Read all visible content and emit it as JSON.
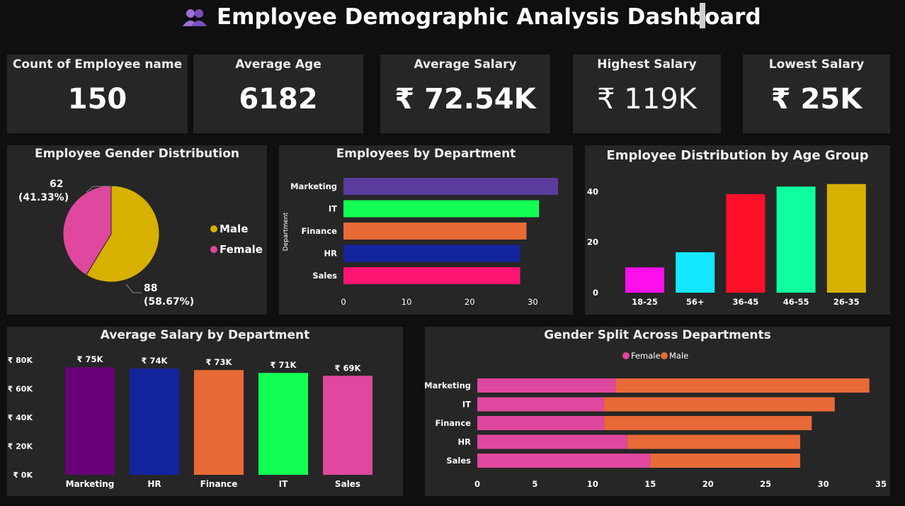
{
  "header": {
    "title": "Employee Demographic Analysis Dashboard"
  },
  "kpis": [
    {
      "label": "Count of Employee name",
      "value": "150"
    },
    {
      "label": "Average Age",
      "value": "6182"
    },
    {
      "label": "Average Salary",
      "value": "₹ 72.54K"
    },
    {
      "label": "Highest Salary",
      "value": "₹ 119K"
    },
    {
      "label": "Lowest Salary",
      "value": "₹ 25K"
    }
  ],
  "colors": {
    "background": "#0f0f0f",
    "card": "#262626",
    "male": "#d8b000",
    "female": "#e0479e"
  },
  "chart_data": [
    {
      "id": "gender",
      "type": "pie",
      "title": "Employee Gender Distribution",
      "slices": [
        {
          "label": "Male",
          "value": 88,
          "display": "88",
          "pct": "(58.67%)",
          "color": "#d8b000"
        },
        {
          "label": "Female",
          "value": 62,
          "display": "62",
          "pct": "(41.33%)",
          "color": "#e0479e"
        }
      ],
      "legend_placement": "right"
    },
    {
      "id": "dept",
      "type": "bar",
      "orientation": "horizontal",
      "title": "Employees by Department",
      "ylabel": "Department",
      "categories": [
        "Marketing",
        "IT",
        "Finance",
        "HR",
        "Sales"
      ],
      "values": [
        34,
        31,
        29,
        28,
        28
      ],
      "colors": [
        "#5b3b9c",
        "#12ff53",
        "#e86a36",
        "#13239e",
        "#ff1472"
      ],
      "xticks": [
        "0",
        "10",
        "20",
        "30"
      ],
      "xlim": [
        0,
        34
      ]
    },
    {
      "id": "age",
      "type": "bar",
      "title": "Employee Distribution by Age Group",
      "categories": [
        "18-25",
        "56+",
        "36-45",
        "46-55",
        "26-35"
      ],
      "values": [
        10,
        16,
        39,
        42,
        43
      ],
      "colors": [
        "#ff10ec",
        "#13e8ff",
        "#ff1028",
        "#10ff9e",
        "#d8b000"
      ],
      "yticks": [
        "0",
        "20",
        "40"
      ],
      "ylim": [
        0,
        46
      ]
    },
    {
      "id": "salary",
      "type": "bar",
      "title": "Average Salary by Department",
      "categories": [
        "Marketing",
        "HR",
        "Finance",
        "IT",
        "Sales"
      ],
      "values": [
        75,
        74,
        73,
        71,
        69
      ],
      "data_labels": [
        "₹ 75K",
        "₹ 74K",
        "₹ 73K",
        "₹ 71K",
        "₹ 69K"
      ],
      "colors": [
        "#6a0078",
        "#13239e",
        "#e86a36",
        "#12ff53",
        "#e0479e"
      ],
      "yticks": [
        "₹ 0K",
        "₹ 20K",
        "₹ 40K",
        "₹ 60K",
        "₹ 80K"
      ],
      "ylim": [
        0,
        80
      ]
    },
    {
      "id": "split",
      "type": "bar",
      "orientation": "horizontal",
      "stacked": true,
      "title": "Gender Split Across Departments",
      "categories": [
        "Marketing",
        "IT",
        "Finance",
        "HR",
        "Sales"
      ],
      "series": [
        {
          "name": "Female",
          "values": [
            12,
            11,
            11,
            13,
            15
          ],
          "color": "#e0479e"
        },
        {
          "name": "Male",
          "values": [
            22,
            20,
            18,
            15,
            13
          ],
          "color": "#e86a36"
        }
      ],
      "xticks": [
        "0",
        "5",
        "10",
        "15",
        "20",
        "25",
        "30",
        "35"
      ],
      "xlim": [
        0,
        35
      ],
      "legend_placement": "top"
    }
  ]
}
